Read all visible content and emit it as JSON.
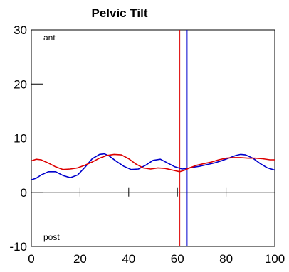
{
  "chart_data": {
    "type": "line",
    "title": "Pelvic Tilt",
    "xlabel": "",
    "ylabel": "",
    "xlim": [
      0,
      100
    ],
    "ylim": [
      -10,
      30
    ],
    "x_ticks": [
      0,
      20,
      40,
      60,
      80,
      100
    ],
    "y_ticks": [
      -10,
      0,
      10,
      20,
      30
    ],
    "x_tick_labels": [
      "0",
      "20",
      "40",
      "60",
      "80",
      "100"
    ],
    "y_tick_labels": [
      "-10",
      "0",
      "10",
      "20",
      "30"
    ],
    "zero_line_ticks": [
      20,
      40,
      60,
      80
    ],
    "annotations": {
      "top": "ant",
      "bottom": "post"
    },
    "grid": false,
    "series": [
      {
        "color": "#0000cc",
        "x": [
          0,
          2,
          4,
          7,
          10,
          13,
          16,
          19,
          22,
          25,
          28,
          30,
          32,
          35,
          38,
          41,
          44,
          47,
          50,
          53,
          56,
          59,
          62,
          64,
          66,
          69,
          72,
          75,
          78,
          81,
          84,
          86,
          88,
          91,
          94,
          97,
          100
        ],
        "y": [
          2.3,
          2.6,
          3.2,
          3.8,
          3.8,
          3.1,
          2.7,
          3.2,
          4.6,
          6.2,
          7.0,
          7.1,
          6.7,
          5.7,
          4.8,
          4.2,
          4.3,
          5.0,
          5.9,
          6.1,
          5.4,
          4.7,
          4.3,
          4.4,
          4.6,
          4.8,
          5.1,
          5.4,
          5.8,
          6.3,
          6.8,
          7.0,
          6.9,
          6.3,
          5.3,
          4.5,
          4.1
        ]
      },
      {
        "color": "#dd0000",
        "x": [
          0,
          2,
          4,
          7,
          10,
          13,
          16,
          19,
          22,
          25,
          28,
          31,
          34,
          37,
          40,
          43,
          46,
          49,
          52,
          55,
          58,
          61,
          63,
          65,
          68,
          71,
          74,
          77,
          80,
          83,
          86,
          89,
          92,
          95,
          98,
          100
        ],
        "y": [
          5.8,
          6.1,
          6.0,
          5.4,
          4.7,
          4.2,
          4.3,
          4.5,
          5.0,
          5.6,
          6.3,
          6.8,
          7.0,
          6.9,
          6.2,
          5.2,
          4.5,
          4.3,
          4.5,
          4.4,
          4.1,
          3.8,
          4.1,
          4.5,
          5.0,
          5.3,
          5.6,
          6.0,
          6.3,
          6.4,
          6.4,
          6.3,
          6.3,
          6.2,
          6.0,
          6.0
        ]
      }
    ],
    "vertical_markers": [
      {
        "color": "#dd0000",
        "x": 61
      },
      {
        "color": "#0000cc",
        "x": 64
      }
    ]
  }
}
